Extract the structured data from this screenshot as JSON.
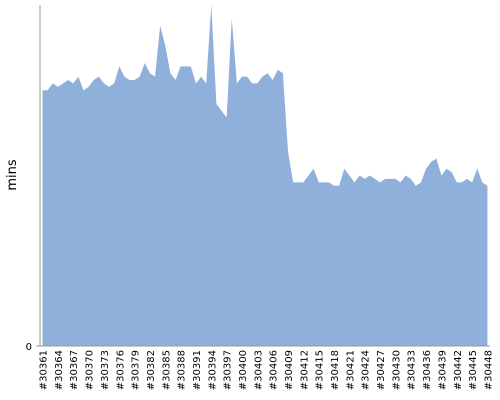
{
  "chart_data": {
    "type": "area",
    "y_label": "mins",
    "color": "#8fb0db",
    "categories": [
      "#30361",
      null,
      null,
      "#30364",
      null,
      null,
      "#30367",
      null,
      null,
      "#30370",
      null,
      null,
      "#30373",
      null,
      null,
      "#30376",
      null,
      null,
      "#30379",
      null,
      null,
      "#30382",
      null,
      null,
      "#30385",
      null,
      null,
      "#30388",
      null,
      null,
      "#30391",
      null,
      null,
      "#30394",
      null,
      null,
      "#30397",
      null,
      null,
      "#30400",
      null,
      null,
      "#30403",
      null,
      null,
      "#30406",
      null,
      null,
      "#30409",
      null,
      null,
      "#30412",
      null,
      null,
      "#30415",
      null,
      null,
      "#30418",
      null,
      null,
      "#30421",
      null,
      null,
      "#30424",
      null,
      null,
      "#30427",
      null,
      null,
      "#30430",
      null,
      null,
      "#30433",
      null,
      null,
      "#30436",
      null,
      null,
      "#30439",
      null,
      null,
      "#30442",
      null,
      null,
      "#30445",
      null,
      null,
      "#30448"
    ],
    "values": [
      75,
      75,
      77,
      76,
      77,
      78,
      77,
      79,
      75,
      76,
      78,
      79,
      77,
      76,
      77,
      82,
      79,
      78,
      78,
      79,
      83,
      80,
      79,
      94,
      88,
      80,
      78,
      82,
      82,
      82,
      77,
      79,
      77,
      100,
      71,
      69,
      67,
      96,
      77,
      79,
      79,
      77,
      77,
      79,
      80,
      78,
      81,
      80,
      57,
      48,
      48,
      48,
      50,
      52,
      48,
      48,
      48,
      47,
      47,
      52,
      50,
      48,
      50,
      49,
      50,
      49,
      48,
      49,
      49,
      49,
      48,
      50,
      49,
      47,
      48,
      52,
      54,
      55,
      50,
      52,
      51,
      48,
      48,
      49,
      48,
      52,
      48,
      47
    ],
    "ylim": [
      0,
      100
    ],
    "yticks": [
      0
    ]
  }
}
